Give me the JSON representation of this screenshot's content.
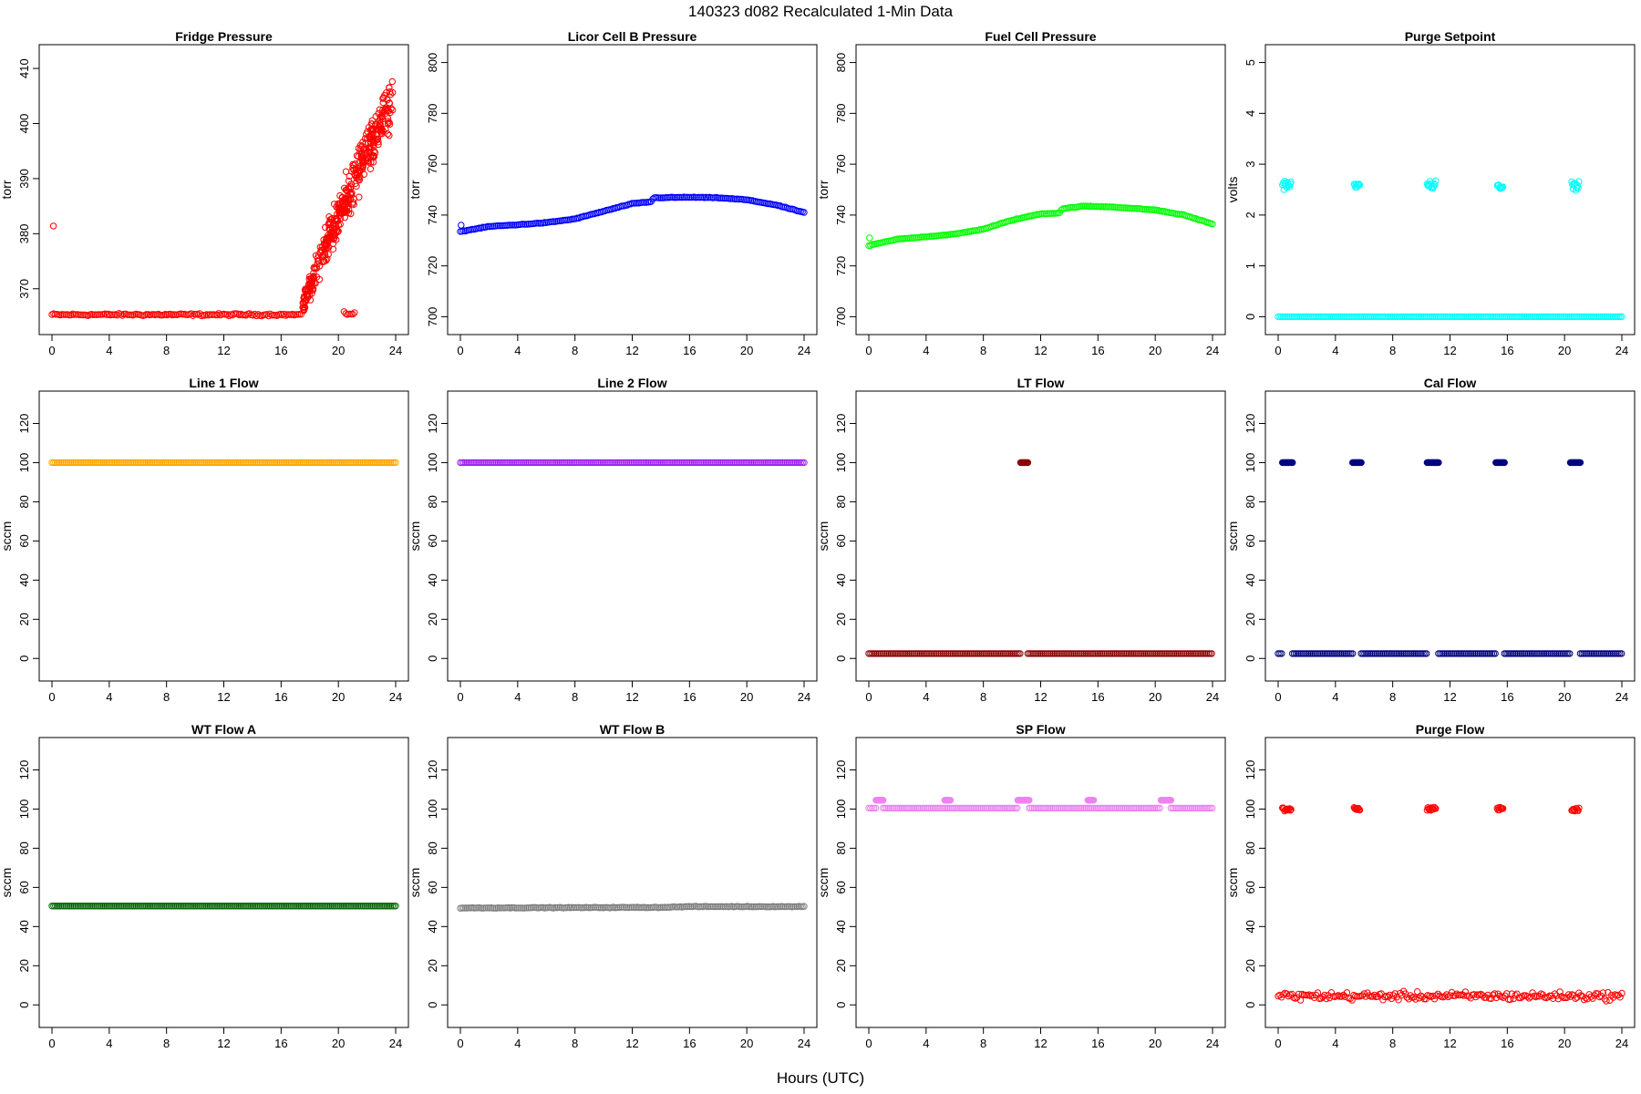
{
  "figure": {
    "title": "140323   d082   Recalculated 1-Min Data",
    "xlabel": "Hours (UTC)"
  },
  "chart_data": [
    {
      "type": "scatter",
      "title": "Fridge Pressure",
      "ylabel": "torr",
      "color": "#ff0000",
      "xlim": [
        0,
        24
      ],
      "ylim": [
        364,
        412
      ],
      "xticks": [
        0,
        4,
        8,
        12,
        16,
        20,
        24
      ],
      "yticks": [
        370,
        380,
        390,
        400,
        410
      ],
      "series": [
        {
          "kind": "band",
          "x": [
            0,
            17.5
          ],
          "y": 365.3,
          "jitter": 0.3
        },
        {
          "kind": "scatter",
          "x": [
            0.1
          ],
          "y": [
            381.4
          ]
        },
        {
          "kind": "band",
          "x": [
            20.4,
            21.2
          ],
          "y": 365.5,
          "jitter": 0.4
        },
        {
          "kind": "ramp",
          "x": [
            17.5,
            23.8
          ],
          "y": [
            366,
            404
          ],
          "spread": 8
        }
      ]
    },
    {
      "type": "scatter",
      "title": "Licor Cell B Pressure",
      "ylabel": "torr",
      "color": "#0000ff",
      "xlim": [
        0,
        24
      ],
      "ylim": [
        698,
        802
      ],
      "xticks": [
        0,
        4,
        8,
        12,
        16,
        20,
        24
      ],
      "yticks": [
        700,
        720,
        740,
        760,
        780,
        800
      ],
      "series": [
        {
          "kind": "curve",
          "x": [
            0,
            2,
            4,
            6,
            8,
            10,
            12,
            13.3,
            13.5,
            16,
            18,
            20,
            22,
            24
          ],
          "y": [
            733.5,
            735.5,
            736.2,
            737,
            738.5,
            741.5,
            744.5,
            745.2,
            746.8,
            747,
            746.8,
            746,
            744,
            741
          ]
        },
        {
          "kind": "scatter",
          "x": [
            0.05
          ],
          "y": [
            736
          ]
        }
      ]
    },
    {
      "type": "scatter",
      "title": "Fuel Cell Pressure",
      "ylabel": "torr",
      "color": "#00ff00",
      "xlim": [
        0,
        24
      ],
      "ylim": [
        698,
        802
      ],
      "xticks": [
        0,
        4,
        8,
        12,
        16,
        20,
        24
      ],
      "yticks": [
        700,
        720,
        740,
        760,
        780,
        800
      ],
      "series": [
        {
          "kind": "curve",
          "x": [
            0,
            2,
            4,
            6,
            8,
            10,
            12,
            13.3,
            13.5,
            15,
            17,
            20,
            22,
            24
          ],
          "y": [
            728,
            730.5,
            731.5,
            732.5,
            734.5,
            738,
            740.5,
            740.8,
            742.5,
            743.5,
            743.2,
            742,
            740,
            736.5
          ]
        },
        {
          "kind": "scatter",
          "x": [
            0.05
          ],
          "y": [
            731
          ]
        }
      ]
    },
    {
      "type": "scatter",
      "title": "Purge Setpoint",
      "ylabel": "volts",
      "color": "#00ffff",
      "xlim": [
        0,
        24
      ],
      "ylim": [
        -0.1,
        5.1
      ],
      "xticks": [
        0,
        4,
        8,
        12,
        16,
        20,
        24
      ],
      "yticks": [
        0,
        1,
        2,
        3,
        4,
        5
      ],
      "series": [
        {
          "kind": "band",
          "x": [
            0,
            24
          ],
          "y": 0,
          "jitter": 0
        },
        {
          "kind": "cluster",
          "x": [
            0.3,
            0.9
          ],
          "y": 2.6,
          "spread": 0.12
        },
        {
          "kind": "cluster",
          "x": [
            5.3,
            5.7
          ],
          "y": 2.58,
          "spread": 0.06
        },
        {
          "kind": "cluster",
          "x": [
            10.4,
            11.0
          ],
          "y": 2.6,
          "spread": 0.12
        },
        {
          "kind": "cluster",
          "x": [
            15.3,
            15.7
          ],
          "y": 2.55,
          "spread": 0.06
        },
        {
          "kind": "cluster",
          "x": [
            20.5,
            21.0
          ],
          "y": 2.58,
          "spread": 0.12
        }
      ]
    },
    {
      "type": "scatter",
      "title": "Line 1 Flow",
      "ylabel": "sccm",
      "color": "#ffa500",
      "xlim": [
        0,
        24
      ],
      "ylim": [
        -5,
        130
      ],
      "xticks": [
        0,
        4,
        8,
        12,
        16,
        20,
        24
      ],
      "yticks": [
        0,
        20,
        40,
        60,
        80,
        100,
        120
      ],
      "series": [
        {
          "kind": "band",
          "x": [
            0,
            24
          ],
          "y": 100,
          "jitter": 0
        }
      ]
    },
    {
      "type": "scatter",
      "title": "Line 2 Flow",
      "ylabel": "sccm",
      "color": "#a020f0",
      "xlim": [
        0,
        24
      ],
      "ylim": [
        -5,
        130
      ],
      "xticks": [
        0,
        4,
        8,
        12,
        16,
        20,
        24
      ],
      "yticks": [
        0,
        20,
        40,
        60,
        80,
        100,
        120
      ],
      "series": [
        {
          "kind": "band",
          "x": [
            0,
            24
          ],
          "y": 100,
          "jitter": 0
        }
      ]
    },
    {
      "type": "scatter",
      "title": "LT Flow",
      "ylabel": "sccm",
      "color": "#8b0000",
      "xlim": [
        0,
        24
      ],
      "ylim": [
        -5,
        130
      ],
      "xticks": [
        0,
        4,
        8,
        12,
        16,
        20,
        24
      ],
      "yticks": [
        0,
        20,
        40,
        60,
        80,
        100,
        120
      ],
      "series": [
        {
          "kind": "band",
          "x": [
            0,
            10.6
          ],
          "y": 2.5,
          "jitter": 0
        },
        {
          "kind": "band",
          "x": [
            11.1,
            24
          ],
          "y": 2.5,
          "jitter": 0
        },
        {
          "kind": "cluster",
          "x": [
            10.6,
            11.1
          ],
          "y": 100,
          "spread": 0
        }
      ]
    },
    {
      "type": "scatter",
      "title": "Cal Flow",
      "ylabel": "sccm",
      "color": "#000080",
      "xlim": [
        0,
        24
      ],
      "ylim": [
        -5,
        130
      ],
      "xticks": [
        0,
        4,
        8,
        12,
        16,
        20,
        24
      ],
      "yticks": [
        0,
        20,
        40,
        60,
        80,
        100,
        120
      ],
      "series": [
        {
          "kind": "band",
          "x": [
            0,
            0.3
          ],
          "y": 2.5,
          "jitter": 0
        },
        {
          "kind": "band",
          "x": [
            1.0,
            5.2
          ],
          "y": 2.5,
          "jitter": 0
        },
        {
          "kind": "band",
          "x": [
            5.8,
            10.4
          ],
          "y": 2.5,
          "jitter": 0
        },
        {
          "kind": "band",
          "x": [
            11.2,
            15.2
          ],
          "y": 2.5,
          "jitter": 0
        },
        {
          "kind": "band",
          "x": [
            15.8,
            20.4
          ],
          "y": 2.5,
          "jitter": 0
        },
        {
          "kind": "band",
          "x": [
            21.1,
            24
          ],
          "y": 2.5,
          "jitter": 0
        },
        {
          "kind": "cluster",
          "x": [
            0.3,
            1.0
          ],
          "y": 100,
          "spread": 0
        },
        {
          "kind": "cluster",
          "x": [
            5.2,
            5.8
          ],
          "y": 100,
          "spread": 0
        },
        {
          "kind": "cluster",
          "x": [
            10.4,
            11.2
          ],
          "y": 100,
          "spread": 0
        },
        {
          "kind": "cluster",
          "x": [
            15.2,
            15.8
          ],
          "y": 100,
          "spread": 0
        },
        {
          "kind": "cluster",
          "x": [
            20.4,
            21.1
          ],
          "y": 100,
          "spread": 0
        }
      ]
    },
    {
      "type": "scatter",
      "title": "WT Flow A",
      "ylabel": "sccm",
      "color": "#006400",
      "xlim": [
        0,
        24
      ],
      "ylim": [
        -5,
        130
      ],
      "xticks": [
        0,
        4,
        8,
        12,
        16,
        20,
        24
      ],
      "yticks": [
        0,
        20,
        40,
        60,
        80,
        100,
        120
      ],
      "series": [
        {
          "kind": "band",
          "x": [
            0,
            24
          ],
          "y": 50.5,
          "jitter": 0
        }
      ]
    },
    {
      "type": "scatter",
      "title": "WT Flow B",
      "ylabel": "sccm",
      "color": "#808080",
      "xlim": [
        0,
        24
      ],
      "ylim": [
        -5,
        130
      ],
      "xticks": [
        0,
        4,
        8,
        12,
        16,
        20,
        24
      ],
      "yticks": [
        0,
        20,
        40,
        60,
        80,
        100,
        120
      ],
      "series": [
        {
          "kind": "curve",
          "x": [
            0,
            14,
            16,
            24
          ],
          "y": [
            49.5,
            49.8,
            50.2,
            50.2
          ]
        }
      ]
    },
    {
      "type": "scatter",
      "title": "SP Flow",
      "ylabel": "sccm",
      "color": "#ee82ee",
      "xlim": [
        0,
        24
      ],
      "ylim": [
        -5,
        130
      ],
      "xticks": [
        0,
        4,
        8,
        12,
        16,
        20,
        24
      ],
      "yticks": [
        0,
        20,
        40,
        60,
        80,
        100,
        120
      ],
      "series": [
        {
          "kind": "band",
          "x": [
            0,
            0.5
          ],
          "y": 100.5,
          "jitter": 0
        },
        {
          "kind": "band",
          "x": [
            1.0,
            10.4
          ],
          "y": 100.5,
          "jitter": 0
        },
        {
          "kind": "band",
          "x": [
            11.2,
            20.4
          ],
          "y": 100.5,
          "jitter": 0
        },
        {
          "kind": "band",
          "x": [
            21.1,
            24
          ],
          "y": 100.5,
          "jitter": 0
        },
        {
          "kind": "cluster",
          "x": [
            0.5,
            1.0
          ],
          "y": 104.5,
          "spread": 0
        },
        {
          "kind": "cluster",
          "x": [
            5.3,
            5.7
          ],
          "y": 104.5,
          "spread": 0
        },
        {
          "kind": "cluster",
          "x": [
            10.4,
            11.2
          ],
          "y": 104.5,
          "spread": 0
        },
        {
          "kind": "cluster",
          "x": [
            15.3,
            15.7
          ],
          "y": 104.5,
          "spread": 0
        },
        {
          "kind": "cluster",
          "x": [
            20.4,
            21.1
          ],
          "y": 104.5,
          "spread": 0
        }
      ]
    },
    {
      "type": "scatter",
      "title": "Purge Flow",
      "ylabel": "sccm",
      "color": "#ff0000",
      "xlim": [
        0,
        24
      ],
      "ylim": [
        -5,
        130
      ],
      "xticks": [
        0,
        4,
        8,
        12,
        16,
        20,
        24
      ],
      "yticks": [
        0,
        20,
        40,
        60,
        80,
        100,
        120
      ],
      "series": [
        {
          "kind": "band",
          "x": [
            0,
            24
          ],
          "y": 4.5,
          "jitter": 3
        },
        {
          "kind": "cluster",
          "x": [
            0.3,
            0.9
          ],
          "y": 100,
          "spread": 1.5
        },
        {
          "kind": "cluster",
          "x": [
            5.3,
            5.7
          ],
          "y": 100,
          "spread": 1.5
        },
        {
          "kind": "cluster",
          "x": [
            10.4,
            11.0
          ],
          "y": 100,
          "spread": 1.5
        },
        {
          "kind": "cluster",
          "x": [
            15.3,
            15.7
          ],
          "y": 100,
          "spread": 1.5
        },
        {
          "kind": "cluster",
          "x": [
            20.5,
            21.0
          ],
          "y": 100,
          "spread": 1.5
        }
      ]
    }
  ]
}
